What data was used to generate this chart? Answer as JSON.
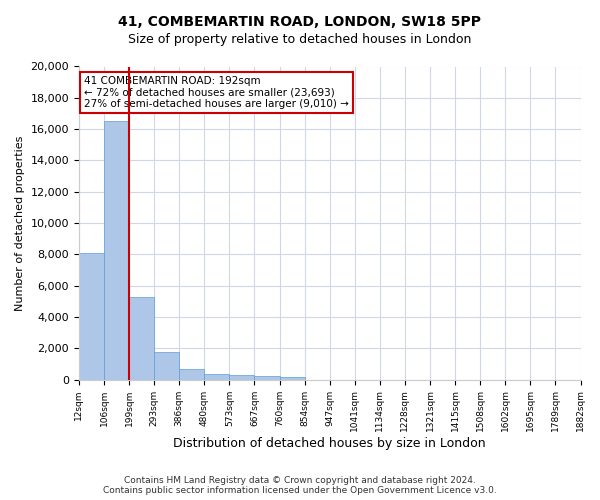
{
  "title": "41, COMBEMARTIN ROAD, LONDON, SW18 5PP",
  "subtitle": "Size of property relative to detached houses in London",
  "xlabel": "Distribution of detached houses by size in London",
  "ylabel": "Number of detached properties",
  "bar_color": "#aec6e8",
  "bar_edge_color": "#5a9fd4",
  "grid_color": "#d0d8e8",
  "property_line_color": "#cc0000",
  "annotation_text": "41 COMBEMARTIN ROAD: 192sqm\n← 72% of detached houses are smaller (23,693)\n27% of semi-detached houses are larger (9,010) →",
  "annotation_box_color": "#cc0000",
  "footer_line1": "Contains HM Land Registry data © Crown copyright and database right 2024.",
  "footer_line2": "Contains public sector information licensed under the Open Government Licence v3.0.",
  "bin_labels": [
    "12sqm",
    "106sqm",
    "199sqm",
    "293sqm",
    "386sqm",
    "480sqm",
    "573sqm",
    "667sqm",
    "760sqm",
    "854sqm",
    "947sqm",
    "1041sqm",
    "1134sqm",
    "1228sqm",
    "1321sqm",
    "1415sqm",
    "1508sqm",
    "1602sqm",
    "1695sqm",
    "1789sqm",
    "1882sqm"
  ],
  "counts": [
    8100,
    16500,
    5300,
    1750,
    650,
    350,
    275,
    210,
    170,
    0,
    0,
    0,
    0,
    0,
    0,
    0,
    0,
    0,
    0,
    0
  ],
  "ylim": [
    0,
    20000
  ],
  "yticks": [
    0,
    2000,
    4000,
    6000,
    8000,
    10000,
    12000,
    14000,
    16000,
    18000,
    20000
  ],
  "property_line_x": 1.5
}
